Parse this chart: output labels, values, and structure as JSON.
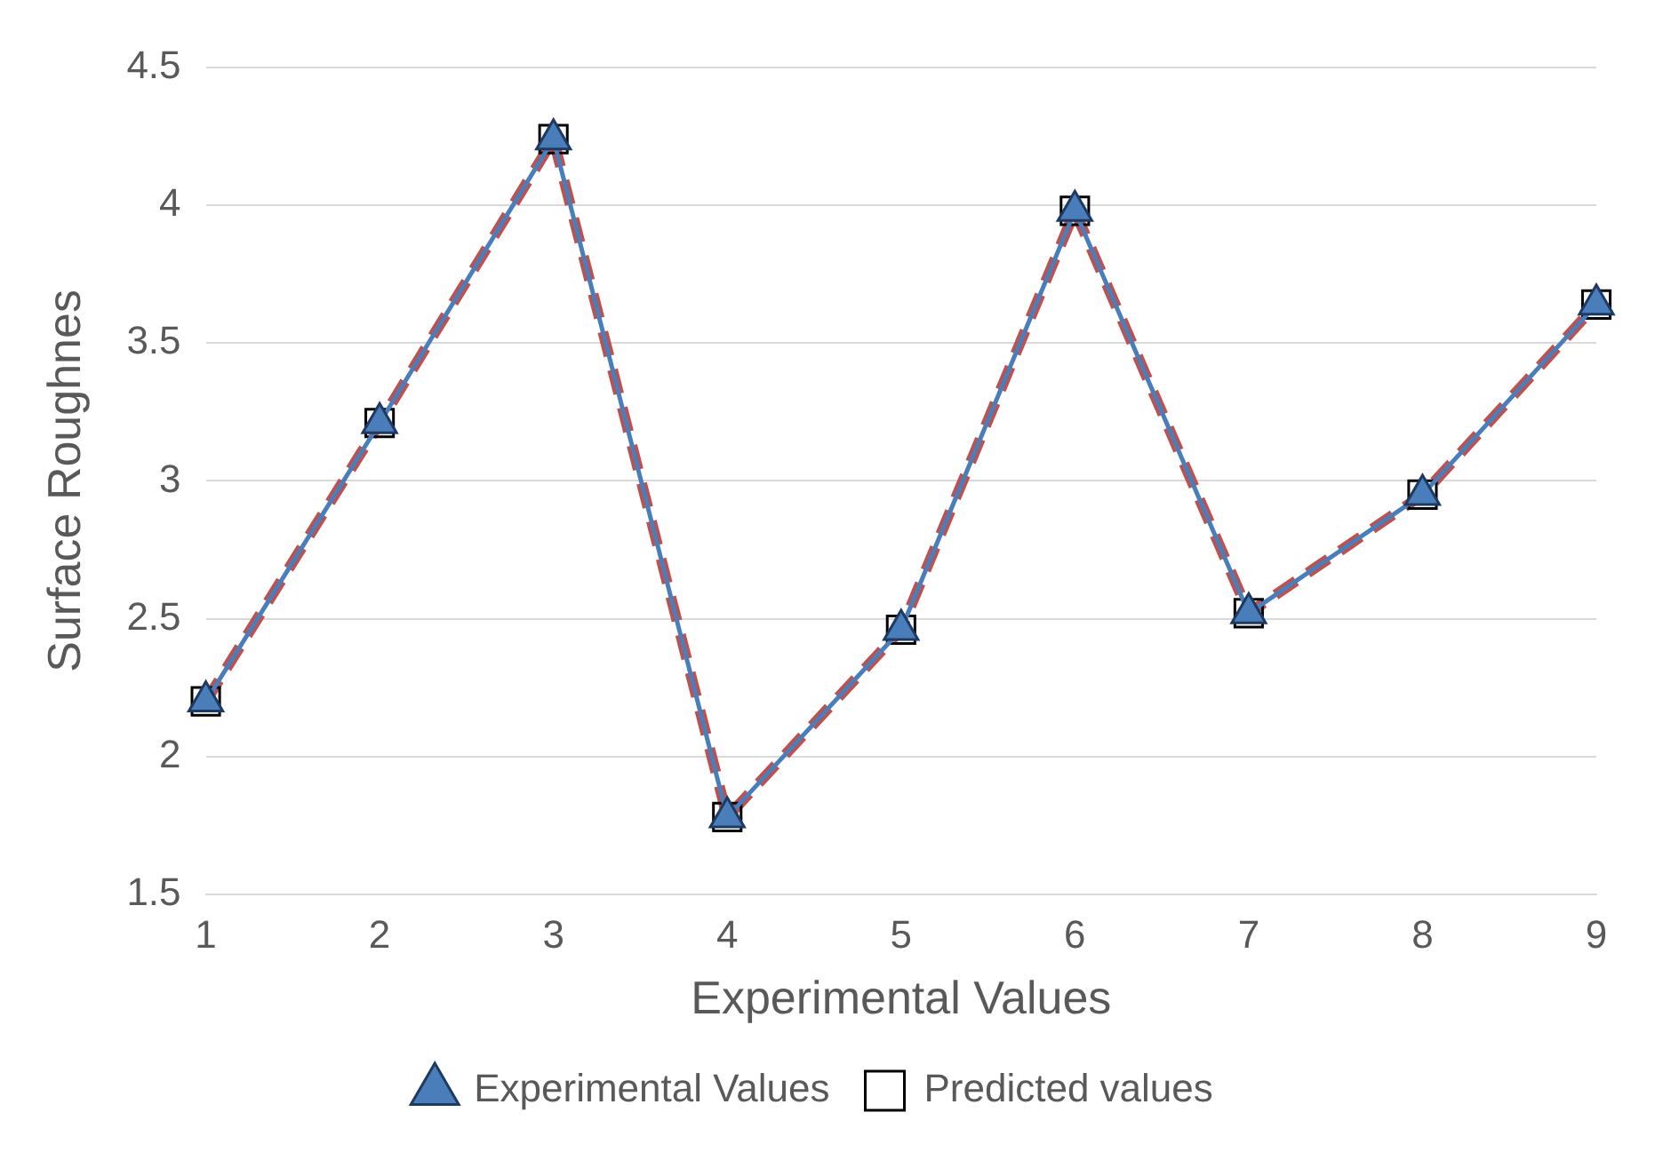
{
  "chart_data": {
    "type": "line",
    "xlabel": "Experimental Values",
    "ylabel": "Surface Roughnes",
    "categories": [
      "1",
      "2",
      "3",
      "4",
      "5",
      "6",
      "7",
      "8",
      "9"
    ],
    "series": [
      {
        "name": "Experimental Values",
        "color": "#4a7ebb",
        "values": [
          2.2,
          3.21,
          4.24,
          1.78,
          2.46,
          3.98,
          2.52,
          2.95,
          3.64
        ],
        "marker": "triangle",
        "line_style": "solid"
      },
      {
        "name": "Predicted values",
        "color": "#c0504d",
        "values": [
          2.2,
          3.21,
          4.24,
          1.78,
          2.46,
          3.98,
          2.52,
          2.95,
          3.64
        ],
        "marker": "square",
        "line_style": "dashed"
      }
    ],
    "ylim": [
      1.5,
      4.5
    ],
    "yticks": [
      1.5,
      2,
      2.5,
      3,
      3.5,
      4,
      4.5
    ],
    "grid": "y",
    "legend": "bottom"
  }
}
